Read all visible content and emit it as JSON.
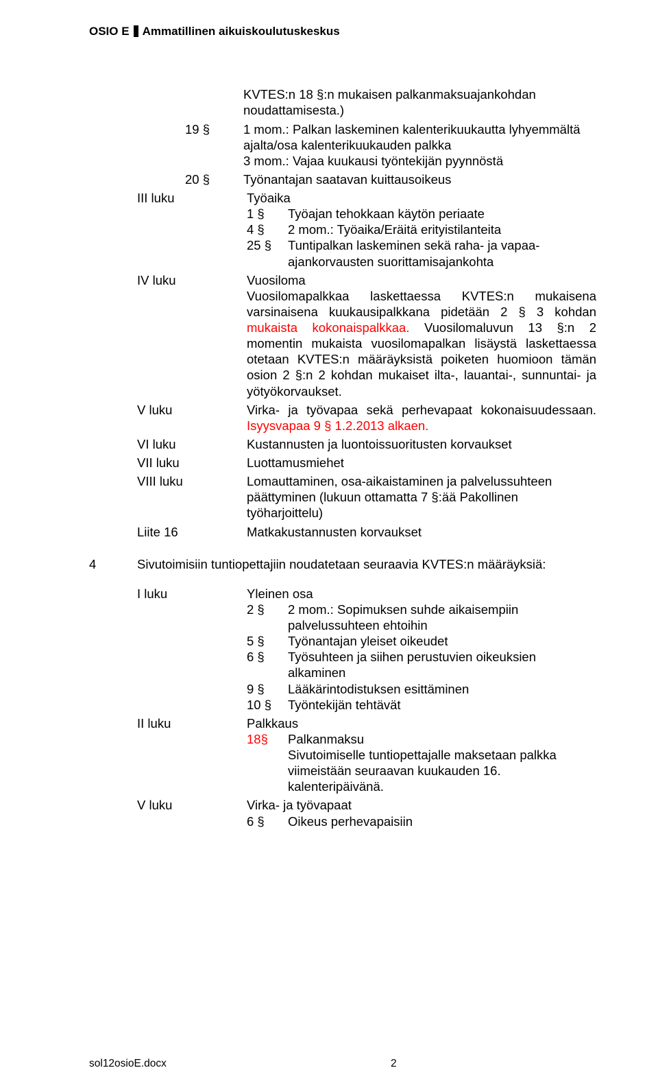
{
  "header": {
    "prefix": "OSIO E",
    "title": "Ammatillinen aikuiskoulutuskeskus"
  },
  "topPara": "KVTES:n 18 §:n mukaisen palkanmaksuajankohdan noudattamisesta.)",
  "item19": {
    "num": "19 §",
    "text": "1 mom.: Palkan laskeminen kalenterikuukautta lyhyemmältä ajalta/osa kalenterikuukauden palkka\n3 mom.: Vajaa kuukausi työntekijän pyynnöstä"
  },
  "item20": {
    "num": "20 §",
    "text": "Työnantajan saatavan kuittausoikeus"
  },
  "luvut": {
    "III": {
      "label": "III luku",
      "title": "Työaika"
    },
    "IV": {
      "label": "IV luku",
      "title": "Vuosiloma"
    },
    "V": {
      "label": "V luku",
      "text": "Virka- ja työvapaa sekä perhevapaat kokonaisuudessaan.",
      "red": " Isyysvapaa 9 § 1.2.2013 alkaen."
    },
    "VI": {
      "label": "VI luku",
      "text": "Kustannusten ja luontoissuoritusten korvaukset"
    },
    "VII": {
      "label": "VII luku",
      "text": "Luottamusmiehet"
    },
    "VIII": {
      "label": "VIII luku",
      "text": "Lomauttaminen, osa-aikaistaminen ja palvelussuhteen päättyminen (lukuun ottamatta 7 §:ää Pakollinen työharjoittelu)"
    },
    "L16": {
      "label": "Liite 16",
      "text": "Matkakustannusten korvaukset"
    }
  },
  "III_items": {
    "a": {
      "num": "1 §",
      "text": "Työajan tehokkaan käytön periaate"
    },
    "b": {
      "num": "4 §",
      "text": "2 mom.: Työaika/Eräitä erityistilanteita"
    },
    "c": {
      "num": "25 §",
      "text": "Tuntipalkan laskeminen sekä raha- ja vapaa-ajankorvausten suorittamisajankohta"
    }
  },
  "IV_para": {
    "pre": "Vuosilomapalkkaa laskettaessa KVTES:n mukaisena varsinaisena kuukausipalkkana pidetään 2 § 3 kohdan",
    "red1": " mukaista kokonaispalkkaa.",
    "post": " Vuosilomaluvun 13 §:n 2 momentin mukaista vuosilomapalkan lisäystä laskettaessa otetaan KVTES:n määräyksistä poiketen huomioon tämän osion 2 §:n 2 kohdan mukaiset ilta-, lauantai-, sunnuntai- ja yötyökorvaukset."
  },
  "section4": {
    "num": "4",
    "heading": "Sivutoimisiin tuntiopettajiin noudatetaan seuraavia KVTES:n määräyksiä:"
  },
  "luvut2": {
    "I": {
      "label": "I luku",
      "title": "Yleinen osa"
    },
    "II": {
      "label": "II luku",
      "title": "Palkkaus"
    },
    "V": {
      "label": "V luku",
      "title": "Virka- ja työvapaat"
    }
  },
  "I_items": {
    "a": {
      "num": "2 §",
      "text": "2 mom.: Sopimuksen suhde aikaisempiin palvelussuhteen ehtoihin"
    },
    "b": {
      "num": "5 §",
      "text": "Työnantajan yleiset oikeudet"
    },
    "c": {
      "num": "6 §",
      "text": "Työsuhteen ja siihen perustuvien oikeuksien alkaminen"
    },
    "d": {
      "num": "9 §",
      "text": "Lääkärintodistuksen esittäminen"
    },
    "e": {
      "num": "10 §",
      "text": "Työntekijän tehtävät"
    }
  },
  "II_items": {
    "a": {
      "num": "18§",
      "text": "Palkanmaksu",
      "red": true
    },
    "b": {
      "text": "Sivutoimiselle tuntiopettajalle maksetaan palkka viimeistään seuraavan kuukauden 16. kalenteripäivänä."
    }
  },
  "V_items": {
    "a": {
      "num": "6 §",
      "text": "Oikeus perhevapaisiin"
    }
  },
  "footer": {
    "file": "sol12osioE.docx",
    "page": "2"
  }
}
